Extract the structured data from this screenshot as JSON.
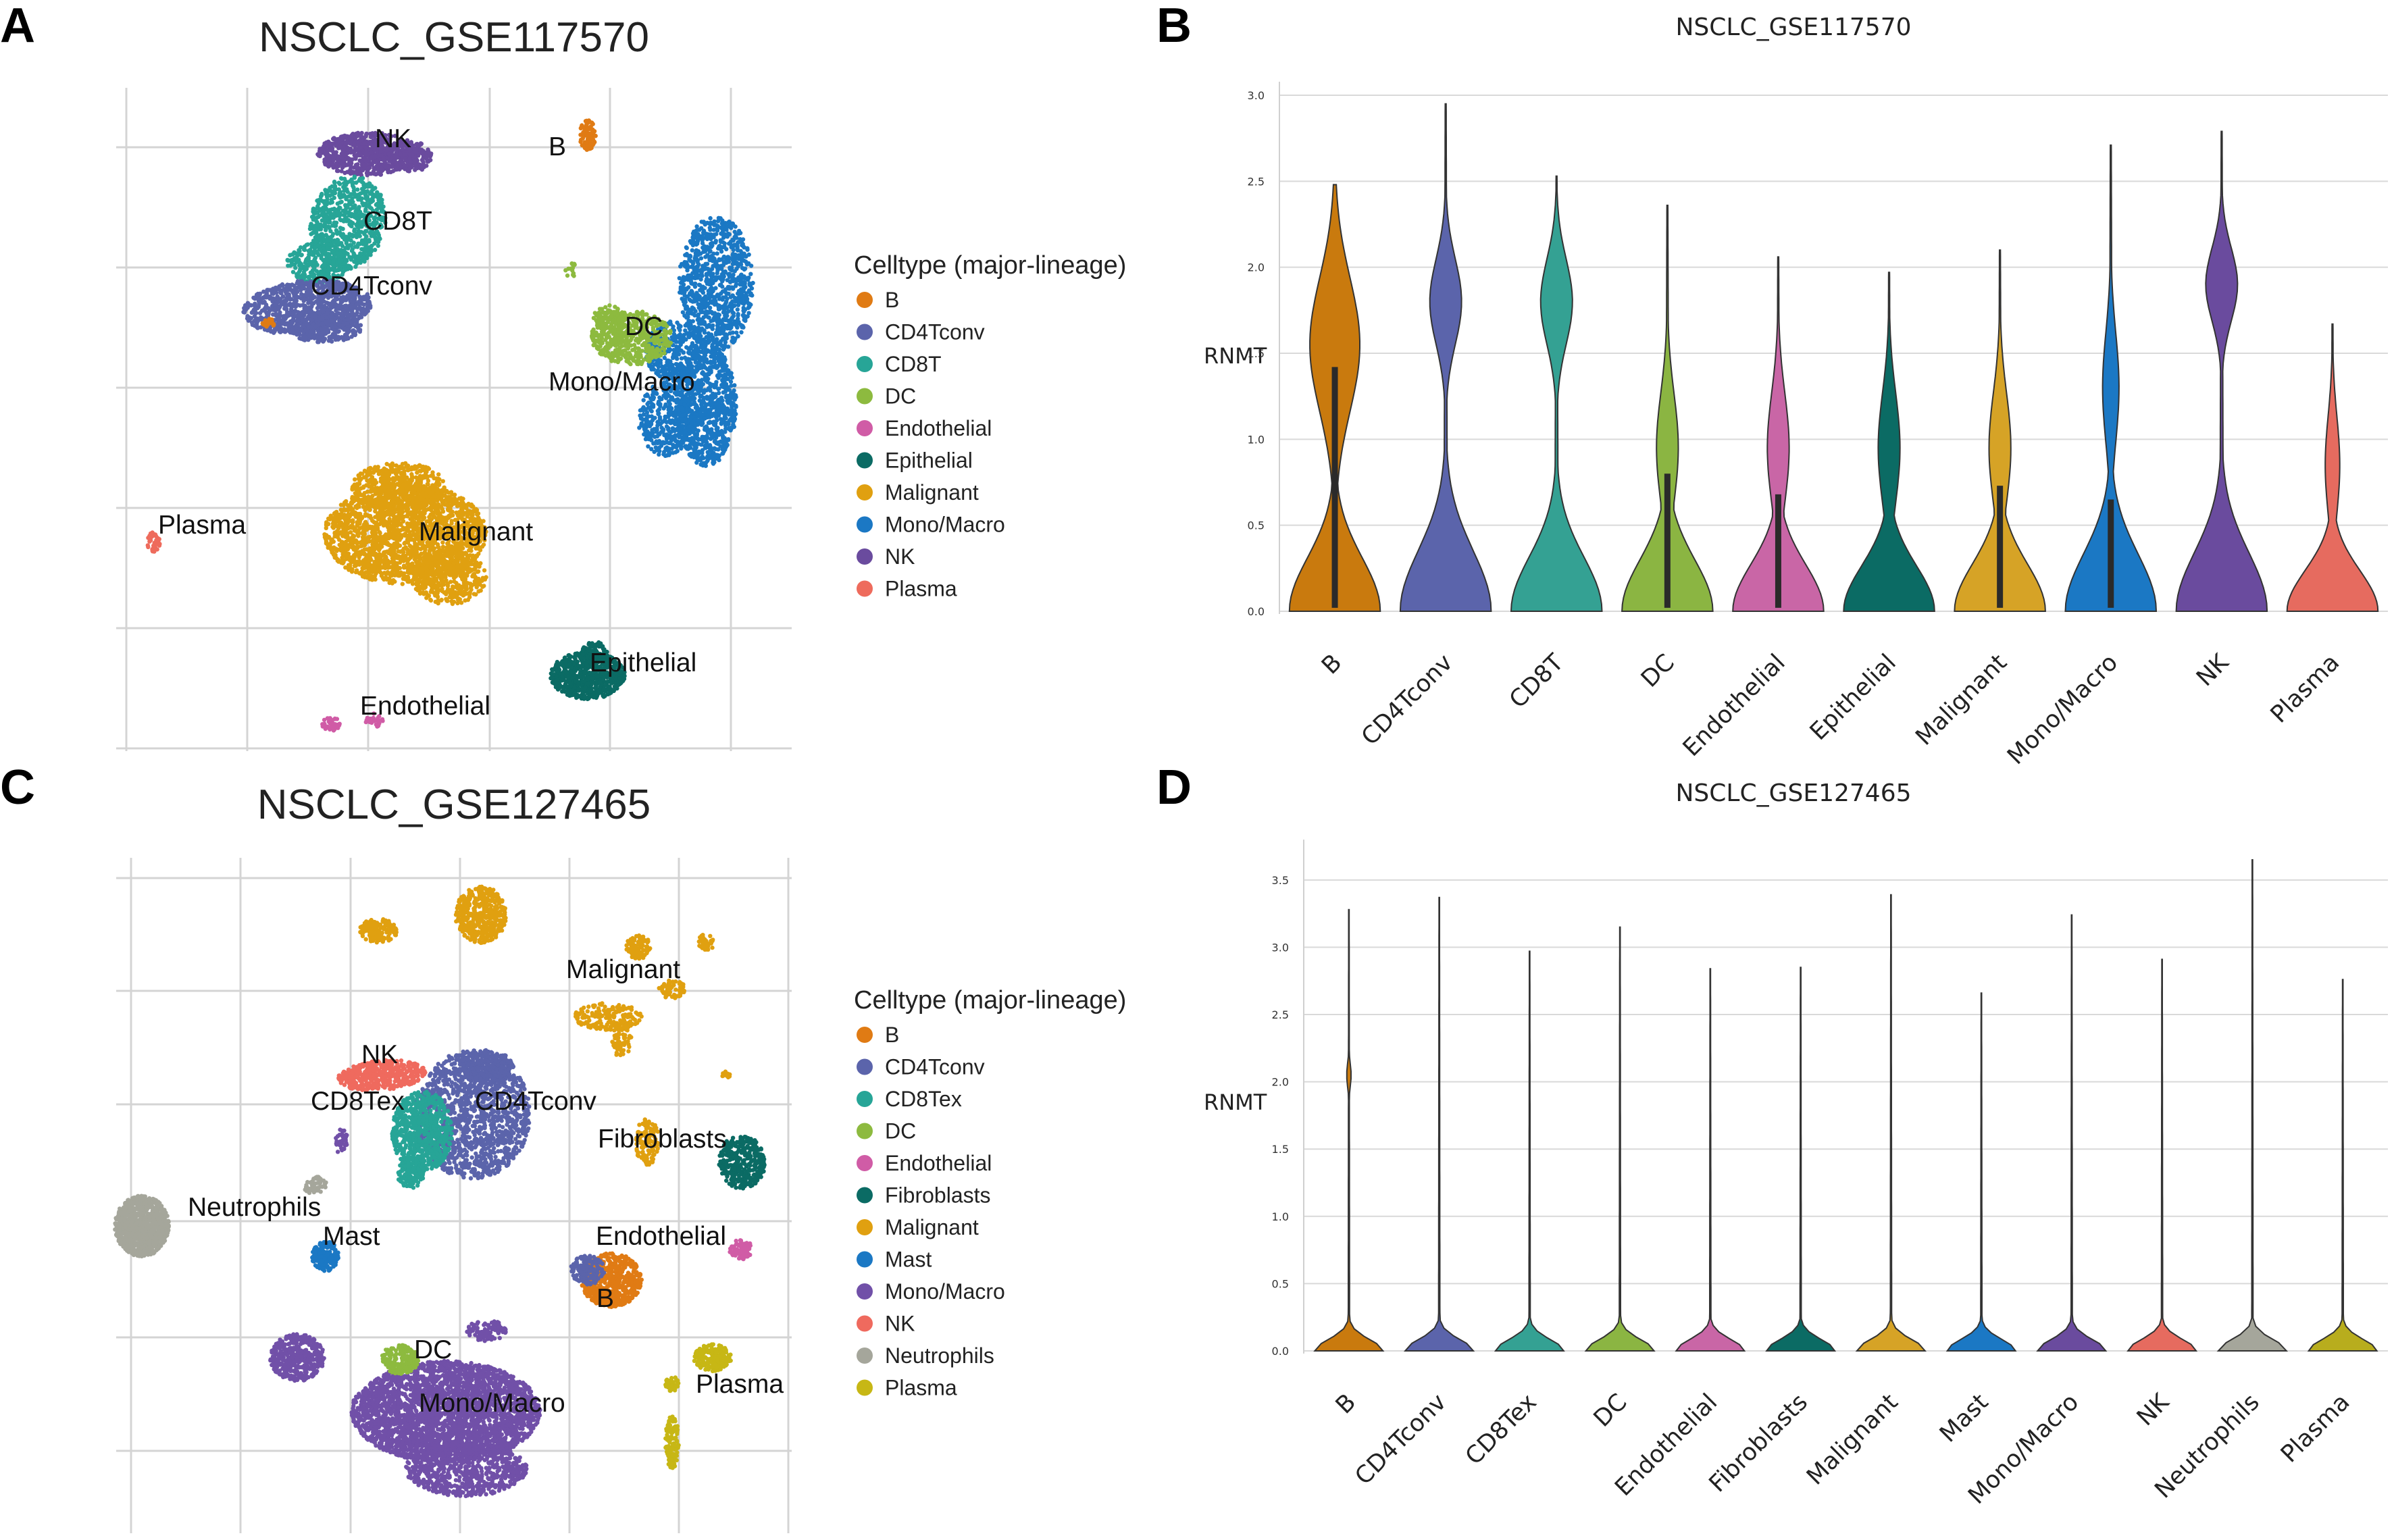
{
  "panels": {
    "A": {
      "letter": "A",
      "title": "NSCLC_GSE117570"
    },
    "B": {
      "letter": "B"
    },
    "C": {
      "letter": "C",
      "title": "NSCLC_GSE127465"
    },
    "D": {
      "letter": "D"
    }
  },
  "colors": {
    "B": "#e07b14",
    "CD4Tconv": "#5b64ab",
    "CD8T": "#27a597",
    "CD8Tex": "#27a597",
    "DC": "#8dba3f",
    "Endothelial": "#d05ca6",
    "Epithelial": "#0b6b64",
    "Fibroblasts": "#0b6b64",
    "Malignant": "#e0a010",
    "Mono/Macro": "#1b78c4",
    "Mast": "#1b78c4",
    "Mono/Macro2": "#7150a8",
    "NK": "#6a4b9e",
    "NK2": "#ef6a5e",
    "Neutrophils": "#a5a69b",
    "Plasma": "#ee6b5c",
    "Plasma2": "#c7b715"
  },
  "chart_data": [
    {
      "type": "scatter",
      "panel": "A",
      "title": "NSCLC_GSE117570",
      "legend_title": "Celltype (major-lineage)",
      "legend_placement": "right",
      "grid": true,
      "legend": [
        {
          "name": "B",
          "color": "#e07b14"
        },
        {
          "name": "CD4Tconv",
          "color": "#5b64ab"
        },
        {
          "name": "CD8T",
          "color": "#27a597"
        },
        {
          "name": "DC",
          "color": "#8dba3f"
        },
        {
          "name": "Endothelial",
          "color": "#d05ca6"
        },
        {
          "name": "Epithelial",
          "color": "#0b6b64"
        },
        {
          "name": "Malignant",
          "color": "#e0a010"
        },
        {
          "name": "Mono/Macro",
          "color": "#1b78c4"
        },
        {
          "name": "NK",
          "color": "#6a4b9e"
        },
        {
          "name": "Plasma",
          "color": "#ee6b5c"
        }
      ],
      "cluster_labels": [
        "NK",
        "B",
        "CD8T",
        "CD4Tconv",
        "DC",
        "Mono/Macro",
        "Plasma",
        "Malignant",
        "Epithelial",
        "Endothelial"
      ]
    },
    {
      "type": "violin",
      "panel": "B",
      "title": "NSCLC_GSE117570",
      "ylabel": "RNMT",
      "ylim": [
        0,
        3.0
      ],
      "yticks": [
        "0.0",
        "0.5",
        "1.0",
        "1.5",
        "2.0",
        "2.5",
        "3.0"
      ],
      "grid": true,
      "categories": [
        "B",
        "CD4Tconv",
        "CD8T",
        "DC",
        "Endothelial",
        "Epithelial",
        "Malignant",
        "Mono/Macro",
        "NK",
        "Plasma"
      ],
      "colors": [
        "#c97a0e",
        "#5b64ab",
        "#34a193",
        "#8bb542",
        "#c966a6",
        "#0b6b64",
        "#d6a326",
        "#1b78c4",
        "#6a4b9e",
        "#e66b5f"
      ],
      "max": [
        2.48,
        2.95,
        2.53,
        2.36,
        2.06,
        1.97,
        2.1,
        2.71,
        2.79,
        1.67
      ]
    },
    {
      "type": "scatter",
      "panel": "C",
      "title": "NSCLC_GSE127465",
      "legend_title": "Celltype (major-lineage)",
      "legend_placement": "right",
      "grid": true,
      "legend": [
        {
          "name": "B",
          "color": "#e07b14"
        },
        {
          "name": "CD4Tconv",
          "color": "#5b64ab"
        },
        {
          "name": "CD8Tex",
          "color": "#27a597"
        },
        {
          "name": "DC",
          "color": "#8dba3f"
        },
        {
          "name": "Endothelial",
          "color": "#d05ca6"
        },
        {
          "name": "Fibroblasts",
          "color": "#0b6b64"
        },
        {
          "name": "Malignant",
          "color": "#e0a010"
        },
        {
          "name": "Mast",
          "color": "#1b78c4"
        },
        {
          "name": "Mono/Macro",
          "color": "#7150a8"
        },
        {
          "name": "NK",
          "color": "#ef6a5e"
        },
        {
          "name": "Neutrophils",
          "color": "#a5a69b"
        },
        {
          "name": "Plasma",
          "color": "#c7b715"
        }
      ],
      "cluster_labels": [
        "Malignant",
        "NK",
        "CD8Tex",
        "CD4Tconv",
        "Fibroblasts",
        "Neutrophils",
        "Mast",
        "Endothelial",
        "B",
        "DC",
        "Mono/Macro",
        "Plasma"
      ]
    },
    {
      "type": "violin",
      "panel": "D",
      "title": "NSCLC_GSE127465",
      "ylabel": "RNMT",
      "ylim": [
        0,
        3.7
      ],
      "yticks": [
        "0.0",
        "0.5",
        "1.0",
        "1.5",
        "2.0",
        "2.5",
        "3.0",
        "3.5"
      ],
      "grid": true,
      "categories": [
        "B",
        "CD4Tconv",
        "CD8Tex",
        "DC",
        "Endothelial",
        "Fibroblasts",
        "Malignant",
        "Mast",
        "Mono/Macro",
        "NK",
        "Neutrophils",
        "Plasma"
      ],
      "colors": [
        "#c97a0e",
        "#5b64ab",
        "#34a193",
        "#8bb542",
        "#c966a6",
        "#0b6b64",
        "#d6a326",
        "#1b78c4",
        "#6a4b9e",
        "#e66b5f",
        "#a5a69b",
        "#b8ad1d"
      ],
      "max": [
        3.28,
        3.37,
        2.97,
        3.15,
        2.84,
        2.85,
        3.39,
        2.66,
        3.24,
        2.91,
        3.65,
        2.76
      ]
    }
  ]
}
